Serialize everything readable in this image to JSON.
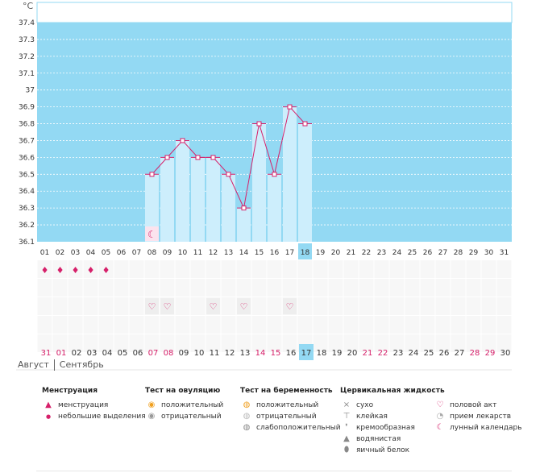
{
  "chart_data": {
    "type": "bar",
    "unit": "°C",
    "ylim": [
      36.1,
      37.4
    ],
    "yticks": [
      "36.1",
      "36.2",
      "36.3",
      "36.4",
      "36.5",
      "36.6",
      "36.7",
      "36.8",
      "36.9",
      "37",
      "37.1",
      "37.2",
      "37.3",
      "37.4"
    ],
    "cycle_days": [
      "01",
      "02",
      "03",
      "04",
      "05",
      "06",
      "07",
      "08",
      "09",
      "10",
      "11",
      "12",
      "13",
      "14",
      "15",
      "16",
      "17",
      "18",
      "19",
      "20",
      "21",
      "22",
      "23",
      "24",
      "25",
      "26",
      "27",
      "28",
      "29",
      "30",
      "31"
    ],
    "highlight_day": "18",
    "points": [
      {
        "day": "08",
        "value": 36.5
      },
      {
        "day": "09",
        "value": 36.6
      },
      {
        "day": "10",
        "value": 36.7
      },
      {
        "day": "11",
        "value": 36.6
      },
      {
        "day": "12",
        "value": 36.6
      },
      {
        "day": "13",
        "value": 36.5
      },
      {
        "day": "14",
        "value": 36.3
      },
      {
        "day": "15",
        "value": 36.8
      },
      {
        "day": "16",
        "value": 36.5
      },
      {
        "day": "17",
        "value": 36.9
      },
      {
        "day": "18",
        "value": 36.8
      }
    ],
    "moon_marker_day": "08"
  },
  "markers": {
    "menstruation_days": [
      "01",
      "02",
      "03",
      "04",
      "05"
    ],
    "sex_days": [
      "08",
      "09",
      "12",
      "14",
      "17"
    ]
  },
  "calendar": {
    "dates": [
      {
        "label": "31",
        "red": true
      },
      {
        "label": "01",
        "red": true
      },
      {
        "label": "02",
        "red": false
      },
      {
        "label": "03",
        "red": false
      },
      {
        "label": "04",
        "red": false
      },
      {
        "label": "05",
        "red": false
      },
      {
        "label": "06",
        "red": false
      },
      {
        "label": "07",
        "red": true
      },
      {
        "label": "08",
        "red": true
      },
      {
        "label": "09",
        "red": false
      },
      {
        "label": "10",
        "red": false
      },
      {
        "label": "11",
        "red": false
      },
      {
        "label": "12",
        "red": false
      },
      {
        "label": "13",
        "red": false
      },
      {
        "label": "14",
        "red": true
      },
      {
        "label": "15",
        "red": true
      },
      {
        "label": "16",
        "red": false
      },
      {
        "label": "17",
        "red": false,
        "today": true
      },
      {
        "label": "18",
        "red": false
      },
      {
        "label": "19",
        "red": false
      },
      {
        "label": "20",
        "red": false
      },
      {
        "label": "21",
        "red": true
      },
      {
        "label": "22",
        "red": true
      },
      {
        "label": "23",
        "red": false
      },
      {
        "label": "24",
        "red": false
      },
      {
        "label": "25",
        "red": false
      },
      {
        "label": "26",
        "red": false
      },
      {
        "label": "27",
        "red": false
      },
      {
        "label": "28",
        "red": true
      },
      {
        "label": "29",
        "red": true
      },
      {
        "label": "30",
        "red": false
      }
    ],
    "month_prev": "Август",
    "month_next": "Сентябрь"
  },
  "legend": {
    "menstruation": {
      "title": "Менструация",
      "items": [
        "менструация",
        "небольшие выделения"
      ]
    },
    "ovulation": {
      "title": "Тест на овуляцию",
      "items": [
        "положительный",
        "отрицательный"
      ]
    },
    "pregnancy": {
      "title": "Тест на беременность",
      "items": [
        "положительный",
        "отрицательный",
        "слабоположительный"
      ]
    },
    "cervical": {
      "title": "Цервикальная жидкость",
      "items": [
        "сухо",
        "клейкая",
        "кремообразная",
        "водянистая",
        "яичный белок"
      ]
    },
    "other": {
      "items": [
        "половой акт",
        "прием лекарств",
        "лунный календарь"
      ]
    }
  },
  "colors": {
    "plot_bg": "#93d9f3",
    "bar_fill": "#cdeefc",
    "line": "#d6206a",
    "today_bg": "#93d9f3",
    "red_date": "#d6206a"
  },
  "icons": {
    "menstruation": "drop-icon",
    "sex": "heart-icon",
    "moon": "moon-icon"
  }
}
